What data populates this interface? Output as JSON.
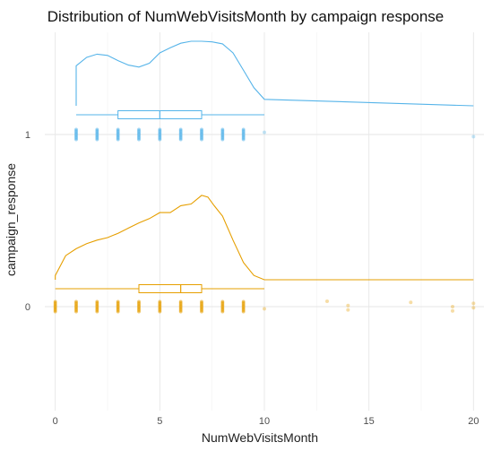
{
  "chart_data": {
    "type": "raincloud",
    "title": "Distribution of NumWebVisitsMonth by campaign response",
    "xlabel": "NumWebVisitsMonth",
    "ylabel": "campaign_response",
    "xlim": [
      -0.5,
      20.5
    ],
    "x_ticks": [
      "0",
      "5",
      "10",
      "15",
      "20"
    ],
    "x_tick_values": [
      0,
      5,
      10,
      15,
      20
    ],
    "grid": true,
    "groups": [
      {
        "category": "0",
        "color": "#E69F00",
        "density": {
          "x": [
            0,
            0.5,
            1,
            1.5,
            2,
            2.5,
            3,
            3.5,
            4,
            4.5,
            5,
            5.5,
            6,
            6.5,
            7,
            7.3,
            7.6,
            8,
            8.5,
            9,
            9.5,
            10,
            20
          ],
          "y": [
            0.05,
            0.28,
            0.36,
            0.42,
            0.46,
            0.49,
            0.54,
            0.6,
            0.66,
            0.71,
            0.78,
            0.78,
            0.86,
            0.88,
            0.98,
            0.96,
            0.86,
            0.74,
            0.46,
            0.2,
            0.05,
            0,
            0
          ]
        },
        "box": {
          "min": 0,
          "q1": 4,
          "median": 6,
          "q3": 7,
          "max": 10
        },
        "points": [
          0,
          1,
          2,
          3,
          4,
          5,
          6,
          7,
          8,
          9,
          10,
          13,
          14,
          14,
          17,
          19,
          19,
          20,
          20
        ]
      },
      {
        "category": "1",
        "color": "#56B4E9",
        "density": {
          "x": [
            1,
            1.5,
            2,
            2.5,
            3,
            3.5,
            4,
            4.5,
            5,
            5.5,
            6,
            6.5,
            7,
            7.5,
            8,
            8.5,
            9,
            9.5,
            10,
            20
          ],
          "y": [
            0.62,
            0.75,
            0.8,
            0.78,
            0.7,
            0.63,
            0.6,
            0.66,
            0.82,
            0.9,
            0.97,
            1.0,
            1.0,
            0.99,
            0.96,
            0.82,
            0.55,
            0.28,
            0.1,
            0
          ]
        },
        "box": {
          "min": 1,
          "q1": 3,
          "median": 5,
          "q3": 7,
          "max": 10
        },
        "points": [
          1,
          2,
          3,
          4,
          5,
          6,
          7,
          8,
          9,
          10,
          20
        ]
      }
    ]
  }
}
